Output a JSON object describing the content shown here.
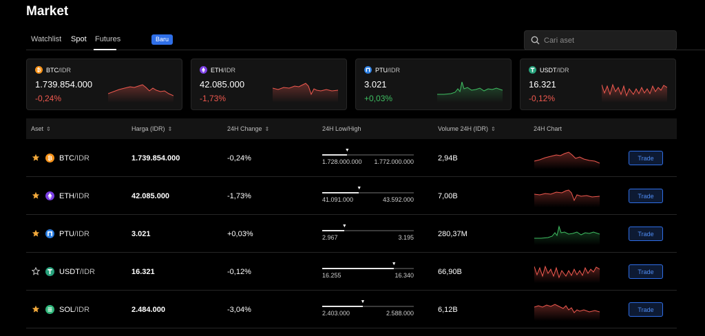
{
  "header": {
    "title": "Market"
  },
  "tabs": [
    {
      "label": "Watchlist"
    },
    {
      "label": "Spot"
    },
    {
      "label": "Futures"
    }
  ],
  "badge": "Baru",
  "search": {
    "placeholder": "Cari aset"
  },
  "colors": {
    "negative": "#f0594f",
    "positive": "#3fbf62",
    "accent": "#2f6fe8",
    "star": "#f2a93b"
  },
  "cards": [
    {
      "base": "BTC",
      "quote": "/IDR",
      "price": "1.739.854.000",
      "change": "-0,24%",
      "icon": "bitcoin-icon"
    },
    {
      "base": "ETH",
      "quote": "/IDR",
      "price": "42.085.000",
      "change": "-1,73%",
      "icon": "ethereum-icon"
    },
    {
      "base": "PTU",
      "quote": "/IDR",
      "price": "3.021",
      "change": "+0,03%",
      "icon": "ptu-icon"
    },
    {
      "base": "USDT",
      "quote": "/IDR",
      "price": "16.321",
      "change": "-0,12%",
      "icon": "tether-icon"
    }
  ],
  "table": {
    "columns": [
      "Aset",
      "Harga (IDR)",
      "24H Change",
      "24H Low/High",
      "Volume 24H (IDR)",
      "24H Chart"
    ],
    "trade_label": "Trade",
    "rows": [
      {
        "base": "BTC",
        "quote": "/IDR",
        "price": "1.739.854.000",
        "change": "-0,24%",
        "low": "1.728.000.000",
        "high": "1.772.000.000",
        "volume": "2,94B",
        "favorite": true,
        "icon": "bitcoin-icon",
        "range_pct": 27
      },
      {
        "base": "ETH",
        "quote": "/IDR",
        "price": "42.085.000",
        "change": "-1,73%",
        "low": "41.091.000",
        "high": "43.592.000",
        "volume": "7,00B",
        "favorite": true,
        "icon": "ethereum-icon",
        "range_pct": 40
      },
      {
        "base": "PTU",
        "quote": "/IDR",
        "price": "3.021",
        "change": "+0,03%",
        "low": "2.967",
        "high": "3.195",
        "volume": "280,37M",
        "favorite": true,
        "icon": "ptu-icon",
        "range_pct": 24
      },
      {
        "base": "USDT",
        "quote": "/IDR",
        "price": "16.321",
        "change": "-0,12%",
        "low": "16.255",
        "high": "16.340",
        "volume": "66,90B",
        "favorite": false,
        "icon": "tether-icon",
        "range_pct": 78
      },
      {
        "base": "SOL",
        "quote": "/IDR",
        "price": "2.484.000",
        "change": "-3,04%",
        "low": "2.403.000",
        "high": "2.588.000",
        "volume": "6,12B",
        "favorite": true,
        "icon": "solana-icon",
        "range_pct": 44
      }
    ]
  }
}
